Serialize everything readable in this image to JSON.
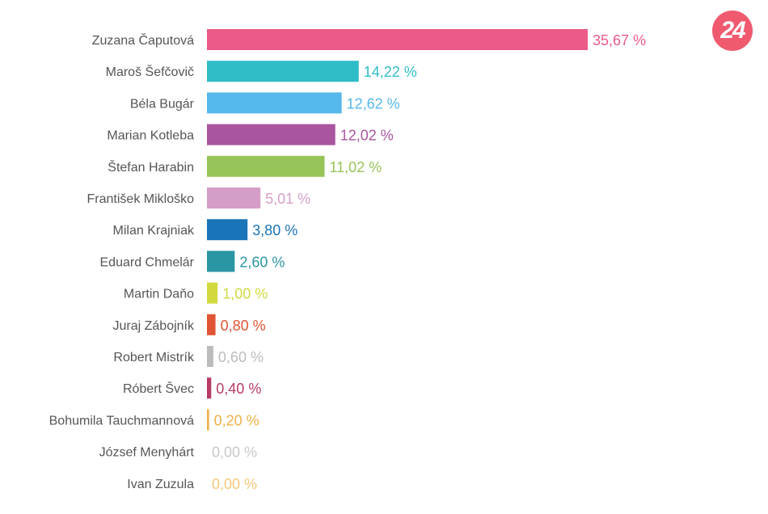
{
  "logo": {
    "text": "24"
  },
  "chart_data": {
    "type": "bar",
    "orientation": "horizontal",
    "categories": [
      "Zuzana Čaputová",
      "Maroš Šefčovič",
      "Béla Bugár",
      "Marian Kotleba",
      "Štefan Harabin",
      "František Mikloško",
      "Milan Krajniak",
      "Eduard Chmelár",
      "Martin Daňo",
      "Juraj Zábojník",
      "Robert Mistrík",
      "Róbert Švec",
      "Bohumila Tauchmannová",
      "József Menyhárt",
      "Ivan Zuzula"
    ],
    "values": [
      35.67,
      14.22,
      12.62,
      12.02,
      11.02,
      5.01,
      3.8,
      2.6,
      1.0,
      0.8,
      0.6,
      0.4,
      0.2,
      0.0,
      0.0
    ],
    "value_labels": [
      "35,67 %",
      "14,22 %",
      "12,62 %",
      "12,02 %",
      "11,02 %",
      "5,01 %",
      "3,80 %",
      "2,60 %",
      "1,00 %",
      "0,80 %",
      "0,60 %",
      "0,40 %",
      "0,20 %",
      "0,00 %",
      "0,00 %"
    ],
    "colors": [
      "#ec5a87",
      "#2fbdc8",
      "#56b8ea",
      "#a9559f",
      "#97c458",
      "#d59ec8",
      "#1a74b8",
      "#2a95a3",
      "#d2d93f",
      "#e15434",
      "#bcbcbc",
      "#b73b63",
      "#f0b04a",
      "#c9c9c9",
      "#f4c87a"
    ],
    "xlim": [
      0,
      35.67
    ],
    "grid": false,
    "legend": "none"
  }
}
